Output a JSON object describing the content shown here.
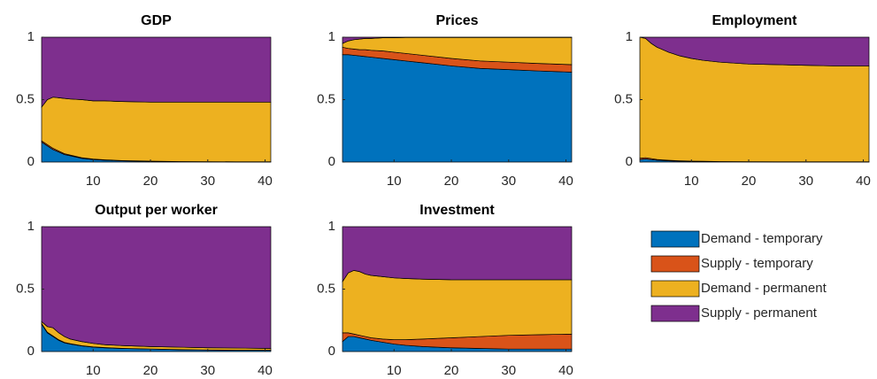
{
  "chart_data": [
    {
      "type": "area",
      "title": "GDP",
      "x": [
        1,
        2,
        3,
        4,
        5,
        6,
        8,
        10,
        12,
        15,
        20,
        25,
        30,
        35,
        41
      ],
      "xlim": [
        1,
        41
      ],
      "xticks": [
        10,
        20,
        30,
        40
      ],
      "ylim": [
        0,
        1
      ],
      "yticks": [
        0,
        0.5,
        1
      ],
      "series": [
        {
          "name": "Demand - temporary",
          "color": "#0072BD",
          "values": [
            0.16,
            0.13,
            0.1,
            0.08,
            0.06,
            0.05,
            0.03,
            0.02,
            0.015,
            0.01,
            0.005,
            0.003,
            0.002,
            0.001,
            0.001
          ]
        },
        {
          "name": "Supply - temporary",
          "color": "#D95319",
          "values": [
            0.01,
            0.01,
            0.01,
            0.008,
            0.007,
            0.006,
            0.005,
            0.004,
            0.003,
            0.002,
            0.002,
            0.001,
            0.001,
            0.001,
            0.001
          ]
        },
        {
          "name": "Demand - permanent",
          "color": "#EDB120",
          "values": [
            0.27,
            0.36,
            0.41,
            0.427,
            0.443,
            0.449,
            0.465,
            0.466,
            0.472,
            0.473,
            0.473,
            0.476,
            0.477,
            0.478,
            0.478
          ]
        },
        {
          "name": "Supply - permanent",
          "color": "#7E2F8E",
          "values": [
            0.56,
            0.5,
            0.48,
            0.485,
            0.49,
            0.495,
            0.5,
            0.51,
            0.51,
            0.515,
            0.52,
            0.52,
            0.52,
            0.52,
            0.52
          ]
        }
      ]
    },
    {
      "type": "area",
      "title": "Prices",
      "x": [
        1,
        2,
        3,
        4,
        5,
        6,
        8,
        10,
        12,
        15,
        20,
        25,
        30,
        35,
        41
      ],
      "xlim": [
        1,
        41
      ],
      "xticks": [
        10,
        20,
        30,
        40
      ],
      "ylim": [
        0,
        1
      ],
      "yticks": [
        0,
        0.5,
        1
      ],
      "series": [
        {
          "name": "Demand - temporary",
          "color": "#0072BD",
          "values": [
            0.86,
            0.86,
            0.855,
            0.85,
            0.845,
            0.84,
            0.83,
            0.82,
            0.81,
            0.795,
            0.77,
            0.75,
            0.74,
            0.73,
            0.72
          ]
        },
        {
          "name": "Supply - temporary",
          "color": "#D95319",
          "values": [
            0.06,
            0.05,
            0.05,
            0.05,
            0.055,
            0.055,
            0.06,
            0.06,
            0.06,
            0.06,
            0.06,
            0.06,
            0.06,
            0.06,
            0.06
          ]
        },
        {
          "name": "Demand - permanent",
          "color": "#EDB120",
          "values": [
            0.03,
            0.06,
            0.075,
            0.085,
            0.09,
            0.095,
            0.105,
            0.115,
            0.128,
            0.143,
            0.168,
            0.188,
            0.198,
            0.208,
            0.218
          ]
        },
        {
          "name": "Supply - permanent",
          "color": "#7E2F8E",
          "values": [
            0.05,
            0.03,
            0.02,
            0.015,
            0.01,
            0.01,
            0.005,
            0.005,
            0.002,
            0.002,
            0.002,
            0.002,
            0.002,
            0.002,
            0.002
          ]
        }
      ]
    },
    {
      "type": "area",
      "title": "Employment",
      "x": [
        1,
        2,
        3,
        4,
        5,
        6,
        8,
        10,
        12,
        15,
        20,
        25,
        30,
        35,
        41
      ],
      "xlim": [
        1,
        41
      ],
      "xticks": [
        10,
        20,
        30,
        40
      ],
      "ylim": [
        0,
        1
      ],
      "yticks": [
        0,
        0.5,
        1
      ],
      "series": [
        {
          "name": "Demand - temporary",
          "color": "#0072BD",
          "values": [
            0.02,
            0.025,
            0.02,
            0.015,
            0.012,
            0.01,
            0.007,
            0.005,
            0.004,
            0.003,
            0.002,
            0.001,
            0.001,
            0.001,
            0.001
          ]
        },
        {
          "name": "Supply - temporary",
          "color": "#D95319",
          "values": [
            0.01,
            0.01,
            0.008,
            0.006,
            0.005,
            0.004,
            0.003,
            0.002,
            0.002,
            0.001,
            0.001,
            0.001,
            0.001,
            0.001,
            0.001
          ]
        },
        {
          "name": "Demand - permanent",
          "color": "#EDB120",
          "values": [
            0.97,
            0.955,
            0.922,
            0.899,
            0.883,
            0.866,
            0.84,
            0.823,
            0.809,
            0.796,
            0.782,
            0.778,
            0.773,
            0.768,
            0.768
          ]
        },
        {
          "name": "Supply - permanent",
          "color": "#7E2F8E",
          "values": [
            0,
            0.01,
            0.05,
            0.08,
            0.1,
            0.12,
            0.15,
            0.17,
            0.185,
            0.2,
            0.215,
            0.22,
            0.225,
            0.23,
            0.23
          ]
        }
      ]
    },
    {
      "type": "area",
      "title": "Output per worker",
      "x": [
        1,
        2,
        3,
        4,
        5,
        6,
        8,
        10,
        12,
        15,
        20,
        25,
        30,
        35,
        41
      ],
      "xlim": [
        1,
        41
      ],
      "xticks": [
        10,
        20,
        30,
        40
      ],
      "ylim": [
        0,
        1
      ],
      "yticks": [
        0,
        0.5,
        1
      ],
      "series": [
        {
          "name": "Demand - temporary",
          "color": "#0072BD",
          "values": [
            0.22,
            0.15,
            0.12,
            0.09,
            0.07,
            0.06,
            0.045,
            0.035,
            0.03,
            0.025,
            0.02,
            0.015,
            0.012,
            0.01,
            0.01
          ]
        },
        {
          "name": "Supply - temporary",
          "color": "#D95319",
          "values": [
            0.005,
            0.005,
            0.005,
            0.004,
            0.003,
            0.003,
            0.002,
            0.002,
            0.002,
            0.001,
            0.001,
            0.001,
            0.001,
            0.001,
            0.001
          ]
        },
        {
          "name": "Demand - permanent",
          "color": "#EDB120",
          "values": [
            0.015,
            0.045,
            0.065,
            0.056,
            0.047,
            0.037,
            0.033,
            0.028,
            0.023,
            0.022,
            0.019,
            0.019,
            0.017,
            0.017,
            0.014
          ]
        },
        {
          "name": "Supply - permanent",
          "color": "#7E2F8E",
          "values": [
            0.76,
            0.8,
            0.81,
            0.85,
            0.88,
            0.9,
            0.92,
            0.935,
            0.945,
            0.952,
            0.96,
            0.965,
            0.97,
            0.972,
            0.975
          ]
        }
      ]
    },
    {
      "type": "area",
      "title": "Investment",
      "x": [
        1,
        2,
        3,
        4,
        5,
        6,
        8,
        10,
        12,
        15,
        20,
        25,
        30,
        35,
        41
      ],
      "xlim": [
        1,
        41
      ],
      "xticks": [
        10,
        20,
        30,
        40
      ],
      "ylim": [
        0,
        1
      ],
      "yticks": [
        0,
        0.5,
        1
      ],
      "series": [
        {
          "name": "Demand - temporary",
          "color": "#0072BD",
          "values": [
            0.08,
            0.12,
            0.12,
            0.11,
            0.1,
            0.09,
            0.075,
            0.06,
            0.05,
            0.04,
            0.03,
            0.025,
            0.02,
            0.02,
            0.02
          ]
        },
        {
          "name": "Supply - temporary",
          "color": "#D95319",
          "values": [
            0.07,
            0.03,
            0.02,
            0.02,
            0.02,
            0.02,
            0.025,
            0.035,
            0.045,
            0.06,
            0.08,
            0.095,
            0.11,
            0.115,
            0.12
          ]
        },
        {
          "name": "Demand - permanent",
          "color": "#EDB120",
          "values": [
            0.41,
            0.48,
            0.51,
            0.51,
            0.5,
            0.5,
            0.5,
            0.495,
            0.49,
            0.48,
            0.465,
            0.455,
            0.445,
            0.44,
            0.435
          ]
        },
        {
          "name": "Supply - permanent",
          "color": "#7E2F8E",
          "values": [
            0.44,
            0.37,
            0.35,
            0.36,
            0.38,
            0.39,
            0.4,
            0.41,
            0.415,
            0.42,
            0.425,
            0.425,
            0.425,
            0.425,
            0.425
          ]
        }
      ]
    }
  ]
}
